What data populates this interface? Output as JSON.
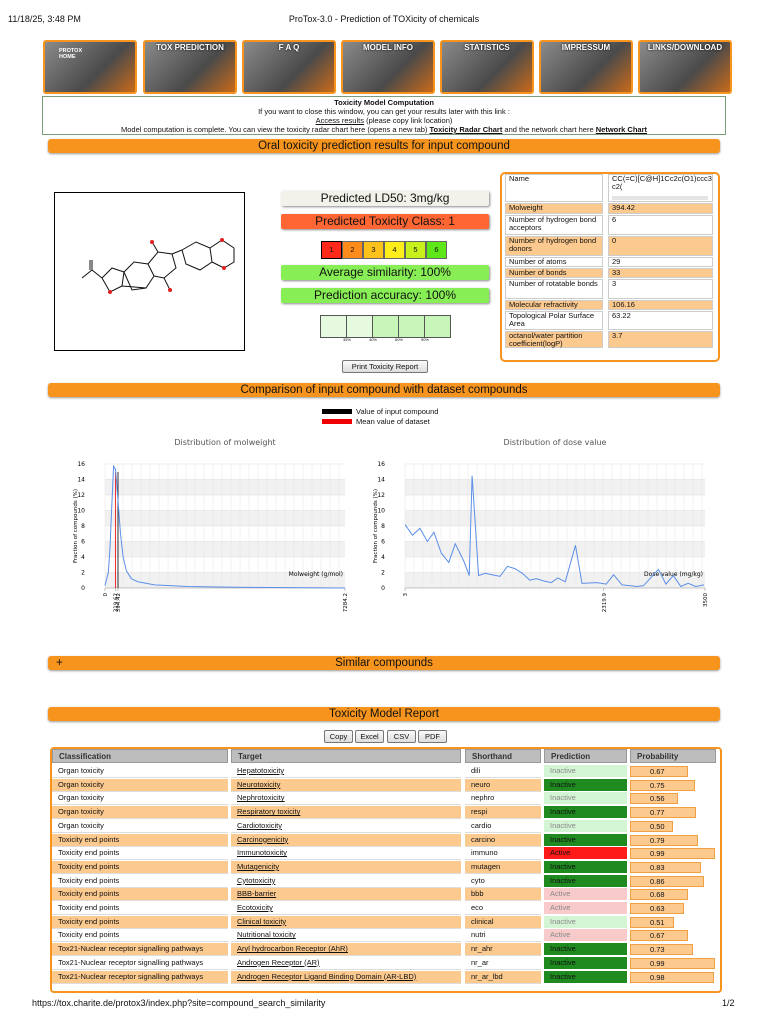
{
  "print_header": {
    "datetime": "11/18/25, 3:48 PM",
    "title": "ProTox-3.0 - Prediction of TOXicity of chemicals"
  },
  "nav": [
    "PROTOX HOME",
    "TOX PREDICTION",
    "F A Q",
    "MODEL INFO",
    "STATISTICS",
    "IMPRESSUM",
    "LINKS/DOWNLOAD"
  ],
  "notice": {
    "title": "Toxicity Model Computation",
    "line1": "If you want to close this window, you can get your results later with this link :",
    "access_link": "Access results",
    "access_note": "(please copy link location)",
    "line3_pre": "Model computation is complete. You can view the toxicity radar chart here (opens a new tab)",
    "radar_link": "Toxicity Radar Chart",
    "line3_mid": "and the network chart here",
    "network_link": "Network Chart"
  },
  "sections": {
    "oral": "Oral toxicity prediction results for input compound",
    "comparison": "Comparison of input compound with dataset compounds",
    "similar_toggle": "+",
    "similar": "Similar compounds",
    "report": "Toxicity Model Report"
  },
  "prediction": {
    "ld50": "Predicted LD50: 3mg/kg",
    "tox_class": "Predicted Toxicity Class: 1",
    "classes": [
      1,
      2,
      3,
      4,
      5,
      6
    ],
    "class_colors": [
      "#ff2a1a",
      "#ff8c1a",
      "#ffc21a",
      "#ffee1a",
      "#c8f01a",
      "#5ee81a"
    ],
    "active_class": 1,
    "similarity": "Average similarity: 100%",
    "accuracy": "Prediction accuracy: 100%",
    "accuracy_scale": [
      "35%",
      "40%",
      "60%",
      "90%"
    ],
    "print_button": "Print Toxicity Report"
  },
  "properties": [
    {
      "label": "Name",
      "value": "CC(=C)[C@H]1Cc2c(O1)ccc3c2("
    },
    {
      "label": "Molweight",
      "value": 394.42
    },
    {
      "label": "Number of hydrogen bond acceptors",
      "value": 6
    },
    {
      "label": "Number of hydrogen bond donors",
      "value": 0
    },
    {
      "label": "Number of atoms",
      "value": 29
    },
    {
      "label": "Number of bonds",
      "value": 33
    },
    {
      "label": "Number of rotatable bonds",
      "value": 3
    },
    {
      "label": "Molecular refractivity",
      "value": 106.16
    },
    {
      "label": "Topological Polar Surface Area",
      "value": 63.22
    },
    {
      "label": "octanol/water partition coefficient(logP)",
      "value": 3.7
    }
  ],
  "legend": {
    "input": "Value of input compound",
    "mean": "Mean value of dataset"
  },
  "charts": [
    {
      "type": "line",
      "title": "Distribution of molweight",
      "x_label": "Molweight (g/mol)",
      "y_label": "Fraction of compounds (%)",
      "color": "#5b8fe8",
      "x": [
        0,
        100,
        150,
        200,
        260,
        320,
        400,
        470,
        550,
        650,
        800,
        1000,
        1500,
        2500,
        4000,
        7284.2
      ],
      "values": [
        0.3,
        2,
        5,
        10,
        15.7,
        15.3,
        11,
        7,
        4,
        2.2,
        1.2,
        0.8,
        0.4,
        0.2,
        0.1,
        0
      ],
      "xlim": [
        0,
        7284.2
      ],
      "xticks": [
        0,
        319.67,
        394.42,
        7284.2
      ],
      "ylim": [
        0,
        16
      ],
      "yticks": [
        0,
        2,
        4,
        6,
        8,
        10,
        12,
        14,
        16
      ],
      "input_value": 394.42,
      "mean_value": 319.67
    },
    {
      "type": "line",
      "title": "Distribution of dose value",
      "x_label": "Dose value (mg/kg)",
      "y_label": "Fraction of compounds (%)",
      "color": "#5b8fe8",
      "x": [
        3,
        90,
        177,
        264,
        340,
        426,
        513,
        589,
        687,
        752,
        785,
        861,
        937,
        1024,
        1111,
        1197,
        1284,
        1371,
        1458,
        1534,
        1621,
        1708,
        1784,
        1871,
        1990,
        2066,
        2240,
        2348,
        2435,
        2533,
        2620,
        2707,
        2783,
        2957,
        3044,
        3131,
        3218,
        3304,
        3391,
        3489
      ],
      "values": [
        8.2,
        6.8,
        7.7,
        6,
        7.2,
        4.5,
        3.3,
        5.7,
        3.5,
        1.6,
        14.5,
        1.6,
        1.9,
        1.7,
        1.5,
        2.8,
        2.5,
        1.9,
        1,
        1.2,
        0.9,
        0.7,
        1.3,
        0.8,
        5.5,
        0.6,
        0.7,
        0.5,
        1.7,
        0.4,
        0.3,
        0.2,
        0.3,
        2.4,
        0.5,
        1.6,
        0.2,
        0.6,
        0.2,
        0.4
      ],
      "xlim": [
        3,
        3500
      ],
      "xticks": [
        3,
        2319.9,
        3500
      ],
      "ylim": [
        0,
        16
      ],
      "yticks": [
        0,
        2,
        4,
        6,
        8,
        10,
        12,
        14,
        16
      ]
    }
  ],
  "table": {
    "buttons": [
      "Copy",
      "Excel",
      "CSV",
      "PDF"
    ],
    "columns": [
      "Classification",
      "Target",
      "Shorthand",
      "Prediction",
      "Probability"
    ],
    "rows": [
      {
        "classification": "Organ toxicity",
        "target": "Hepatotoxicity",
        "shorthand": "dili",
        "prediction": "Inactive",
        "probability": 0.67
      },
      {
        "classification": "Organ toxicity",
        "target": "Neurotoxicity",
        "shorthand": "neuro",
        "prediction": "Inactive",
        "probability": 0.75
      },
      {
        "classification": "Organ toxicity",
        "target": "Nephrotoxicity",
        "shorthand": "nephro",
        "prediction": "Inactive",
        "probability": 0.56
      },
      {
        "classification": "Organ toxicity",
        "target": "Respiratory toxicity",
        "shorthand": "respi",
        "prediction": "Inactive",
        "probability": 0.77
      },
      {
        "classification": "Organ toxicity",
        "target": "Cardiotoxicity",
        "shorthand": "cardio",
        "prediction": "Inactive",
        "probability": 0.5,
        "value_label": "0.50"
      },
      {
        "classification": "Toxicity end points",
        "target": "Carcinogenicity",
        "shorthand": "carcino",
        "prediction": "Inactive",
        "probability": 0.79
      },
      {
        "classification": "Toxicity end points",
        "target": "Immunotoxicity",
        "shorthand": "immuno",
        "prediction": "Active",
        "probability": 0.99
      },
      {
        "classification": "Toxicity end points",
        "target": "Mutagenicity",
        "shorthand": "mutagen",
        "prediction": "Inactive",
        "probability": 0.83
      },
      {
        "classification": "Toxicity end points",
        "target": "Cytotoxicity",
        "shorthand": "cyto",
        "prediction": "Inactive",
        "probability": 0.86
      },
      {
        "classification": "Toxicity end points",
        "target": "BBB-barrier",
        "shorthand": "bbb",
        "prediction": "Active",
        "probability": 0.68
      },
      {
        "classification": "Toxicity end points",
        "target": "Ecotoxicity",
        "shorthand": "eco",
        "prediction": "Active",
        "probability": 0.63
      },
      {
        "classification": "Toxicity end points",
        "target": "Clinical toxicity",
        "shorthand": "clinical",
        "prediction": "Inactive",
        "probability": 0.51
      },
      {
        "classification": "Toxicity end points",
        "target": "Nutritional toxicity",
        "shorthand": "nutri",
        "prediction": "Active",
        "probability": 0.67
      },
      {
        "classification": "Tox21-Nuclear receptor signalling pathways",
        "target": "Aryl hydrocarbon Receptor (AhR)",
        "shorthand": "nr_ahr",
        "prediction": "Inactive",
        "probability": 0.73
      },
      {
        "classification": "Tox21-Nuclear receptor signalling pathways",
        "target": "Androgen Receptor (AR)",
        "shorthand": "nr_ar",
        "prediction": "Inactive",
        "probability": 0.99
      },
      {
        "classification": "Tox21-Nuclear receptor signalling pathways",
        "target": "Androgen Receptor Ligand Binding Domain (AR-LBD)",
        "shorthand": "nr_ar_lbd",
        "prediction": "Inactive",
        "probability": 0.98
      }
    ]
  },
  "footer": {
    "url": "https://tox.charite.de/protox3/index.php?site=compound_search_similarity",
    "page": "1/2"
  }
}
